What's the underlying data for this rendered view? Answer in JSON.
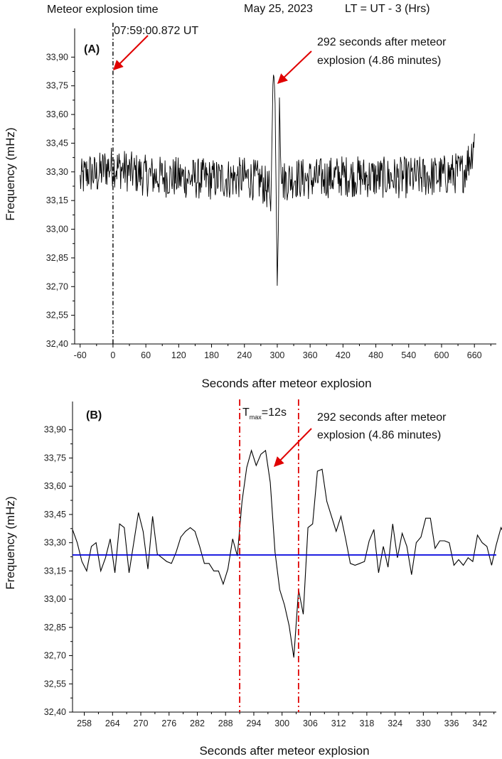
{
  "header": {
    "left": "Meteor explosion time",
    "date": "May 25, 2023",
    "timezone": "LT = UT - 3 (Hrs)"
  },
  "chart_data": [
    {
      "type": "line",
      "panel_label": "(A)",
      "xlabel": "Seconds after meteor explosion",
      "ylabel": "Frequency (mHz)",
      "xlim": [
        -70,
        700
      ],
      "ylim": [
        32.4,
        34.05
      ],
      "x_ticks": [
        "-60",
        "0",
        "60",
        "120",
        "180",
        "240",
        "300",
        "360",
        "420",
        "480",
        "540",
        "600",
        "660"
      ],
      "y_ticks": [
        "32,40",
        "32,55",
        "32,70",
        "32,85",
        "33,00",
        "33,15",
        "33,30",
        "33,45",
        "33,60",
        "33,75",
        "33,90"
      ],
      "series": [
        {
          "color": "#000000",
          "sampling_s": 1,
          "x_start": -60,
          "x": [
            -60,
            -45,
            -30,
            -15,
            0,
            30,
            60,
            120,
            180,
            240,
            270,
            285,
            288,
            290,
            292,
            294,
            296,
            298,
            300,
            302,
            304,
            306,
            310,
            330,
            360,
            420,
            480,
            540,
            600,
            640,
            655,
            660
          ],
          "y": [
            33.25,
            33.3,
            33.28,
            33.32,
            33.33,
            33.3,
            33.28,
            33.27,
            33.26,
            33.27,
            33.25,
            33.2,
            33.1,
            33.4,
            33.78,
            33.8,
            33.65,
            33.2,
            32.7,
            33.0,
            33.7,
            33.4,
            33.25,
            33.27,
            33.26,
            33.28,
            33.27,
            33.27,
            33.28,
            33.3,
            33.4,
            33.5
          ]
        }
      ],
      "annotations": [
        {
          "text": "07:59:00.872 UT",
          "x": 0
        },
        {
          "text": "292 seconds after meteor",
          "text2": "explosion (4.86 minutes)",
          "x": 292
        }
      ]
    },
    {
      "type": "line",
      "panel_label": "(B)",
      "xlabel": "Seconds after meteor explosion",
      "ylabel": "Frequency (mHz)",
      "xlim": [
        255.5,
        345.5
      ],
      "ylim": [
        32.4,
        34.05
      ],
      "x_ticks": [
        "258",
        "264",
        "270",
        "276",
        "282",
        "288",
        "294",
        "300",
        "306",
        "312",
        "318",
        "324",
        "330",
        "336",
        "342"
      ],
      "y_ticks": [
        "32,40",
        "32,55",
        "32,70",
        "32,85",
        "33,00",
        "33,15",
        "33,30",
        "33,45",
        "33,60",
        "33,75",
        "33,90"
      ],
      "series": [
        {
          "color": "#000000",
          "x_start": 255.5,
          "x_step": 1,
          "y": [
            33.37,
            33.3,
            33.2,
            33.15,
            33.28,
            33.3,
            33.15,
            33.22,
            33.32,
            33.14,
            33.4,
            33.38,
            33.14,
            33.3,
            33.46,
            33.36,
            33.16,
            33.44,
            33.24,
            33.22,
            33.2,
            33.19,
            33.25,
            33.33,
            33.36,
            33.38,
            33.36,
            33.28,
            33.19,
            33.19,
            33.15,
            33.15,
            33.08,
            33.16,
            33.32,
            33.23,
            33.52,
            33.7,
            33.79,
            33.71,
            33.77,
            33.79,
            33.62,
            33.25,
            33.05,
            32.97,
            32.86,
            32.69,
            33.05,
            32.92,
            33.38,
            33.4,
            33.68,
            33.69,
            33.52,
            33.44,
            33.36,
            33.44,
            33.32,
            33.19,
            33.18,
            33.19,
            33.2,
            33.31,
            33.37,
            33.14,
            33.28,
            33.17,
            33.4,
            33.22,
            33.35,
            33.28,
            33.13,
            33.3,
            33.33,
            33.43,
            33.43,
            33.27,
            33.31,
            33.31,
            33.3,
            33.18,
            33.21,
            33.18,
            33.22,
            33.2,
            33.34,
            33.3,
            33.28,
            33.18,
            33.29,
            33.38,
            33.33
          ]
        },
        {
          "color": "#0000dd",
          "kind": "hline",
          "y": [
            33.235,
            33.235
          ],
          "x": [
            255.5,
            345.5
          ]
        }
      ],
      "vlines": [
        291,
        303.5
      ],
      "annotations": [
        {
          "text": "T",
          "sub": "max",
          "suffix": "=12s"
        },
        {
          "text": "292 seconds after meteor",
          "text2": "explosion (4.86 minutes)",
          "x": 292
        }
      ]
    }
  ]
}
